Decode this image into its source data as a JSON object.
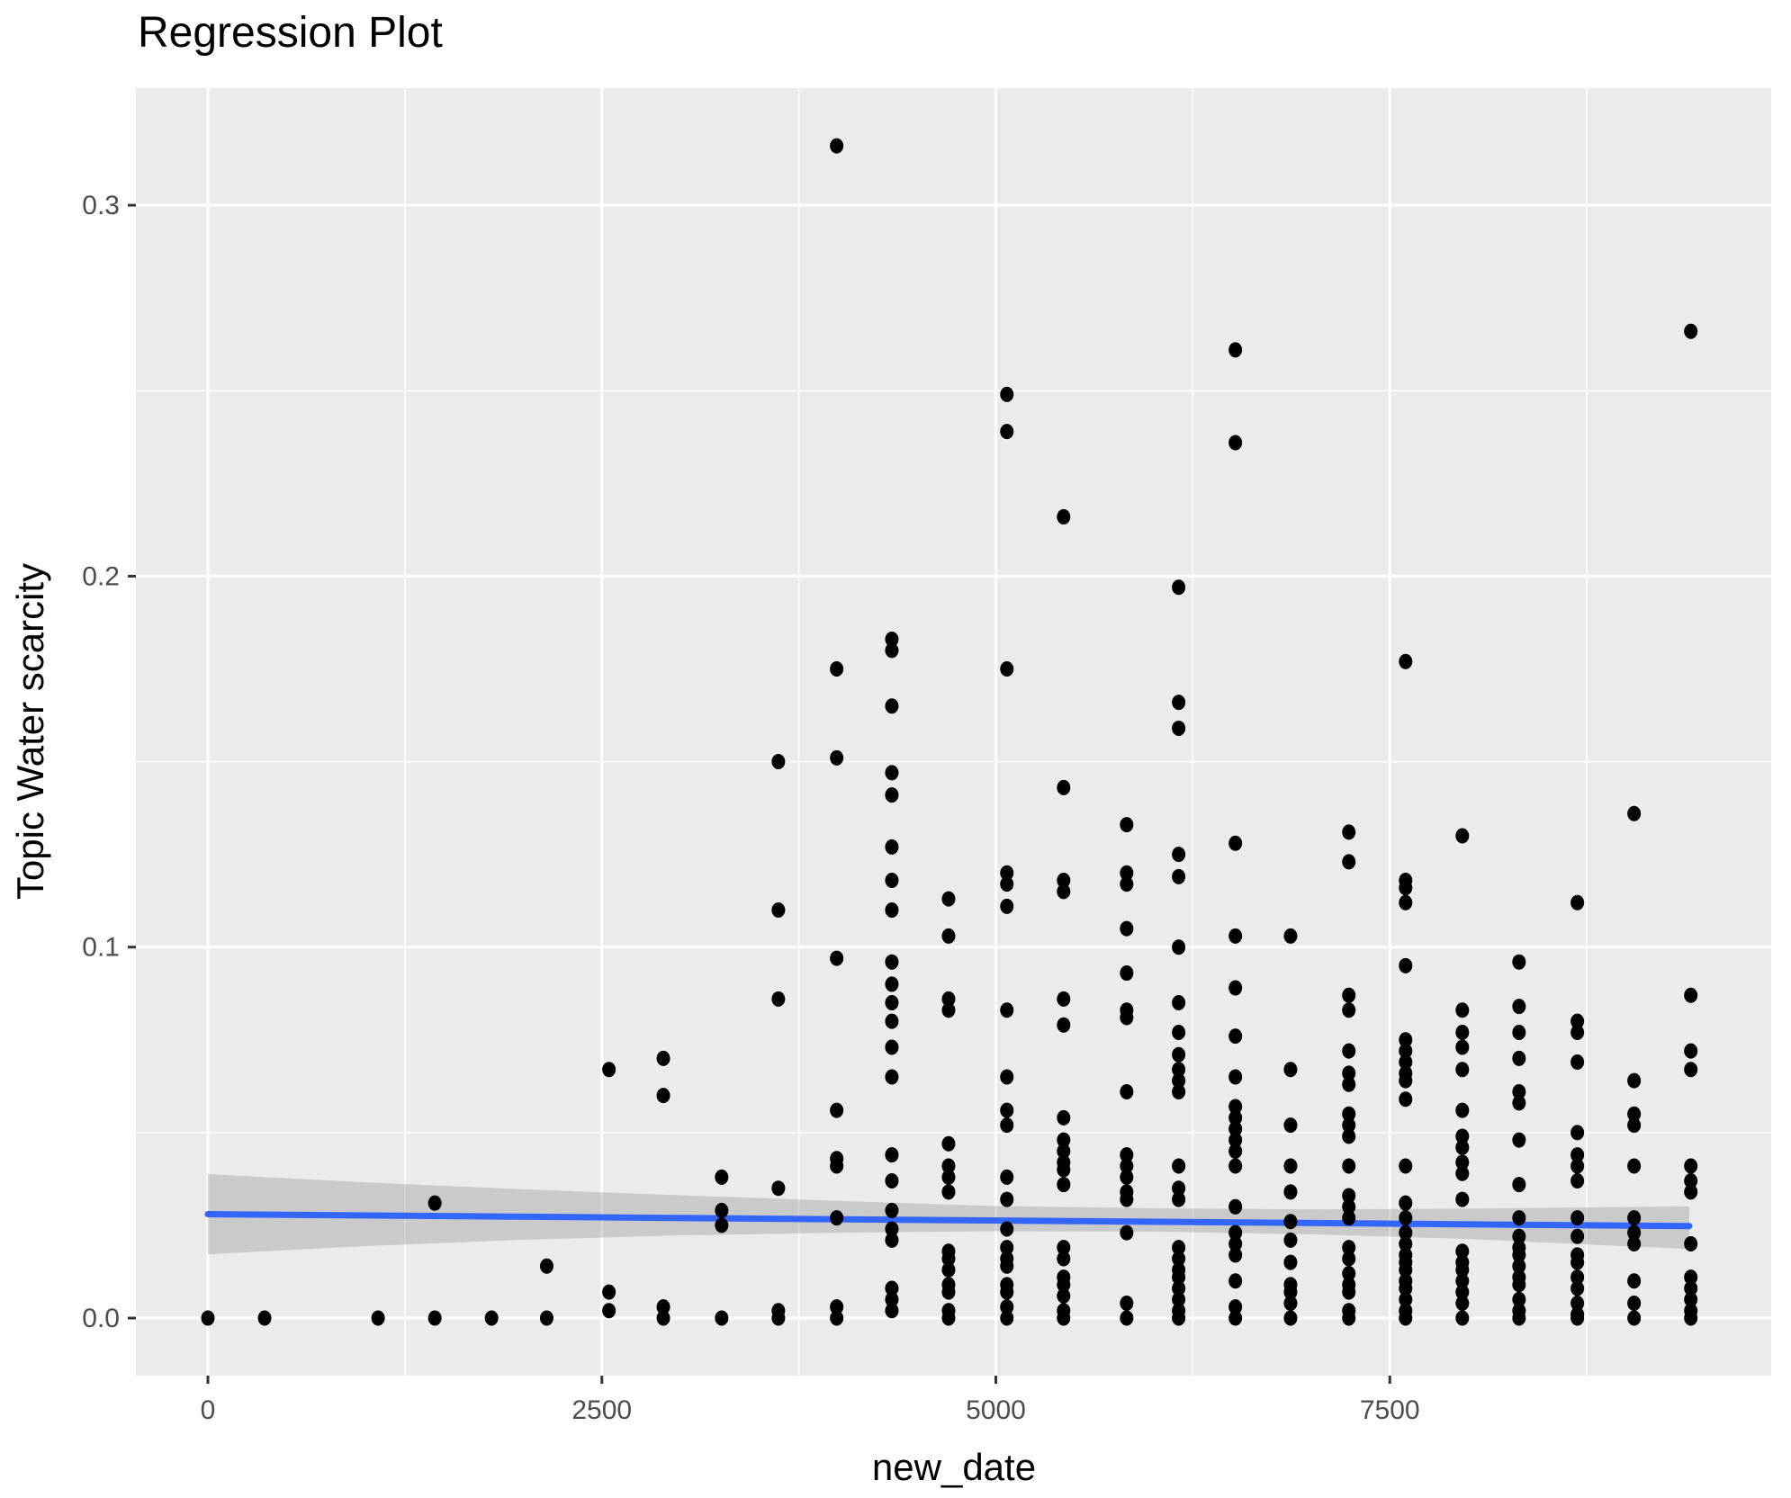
{
  "title": "Regression Plot",
  "x_axis": {
    "label": "new_date",
    "ticks": [
      {
        "v": 0,
        "label": "0"
      },
      {
        "v": 2500,
        "label": "2500"
      },
      {
        "v": 5000,
        "label": "5000"
      },
      {
        "v": 7500,
        "label": "7500"
      }
    ],
    "minor": [
      1250,
      3750,
      6250,
      8750
    ]
  },
  "y_axis": {
    "label": "Topic Water scarcity",
    "ticks": [
      {
        "v": 0.0,
        "label": "0.0"
      },
      {
        "v": 0.1,
        "label": "0.1"
      },
      {
        "v": 0.2,
        "label": "0.2"
      },
      {
        "v": 0.3,
        "label": "0.3"
      }
    ],
    "minor": [
      0.05,
      0.15,
      0.25
    ]
  },
  "colors": {
    "panel_bg": "#EBEBEB",
    "grid": "#FFFFFF",
    "point": "#000000",
    "line": "#3366FF",
    "band": "#999999",
    "band_opacity": 0.4,
    "tick_text": "#4D4D4D",
    "title_text": "#000000"
  },
  "chart_data": {
    "type": "scatter",
    "title": "Regression Plot",
    "xlabel": "new_date",
    "ylabel": "Topic Water scarcity",
    "xlim": [
      -460,
      9915
    ],
    "ylim": [
      -0.0155,
      0.3316
    ],
    "grid": true,
    "legend": "none",
    "points": [
      [
        0,
        0
      ],
      [
        360,
        0
      ],
      [
        1080,
        0
      ],
      [
        1440,
        0.031
      ],
      [
        1440,
        0
      ],
      [
        1800,
        0
      ],
      [
        2150,
        0.014
      ],
      [
        2150,
        0
      ],
      [
        2545,
        0.067
      ],
      [
        2545,
        0.007
      ],
      [
        2545,
        0.002
      ],
      [
        2890,
        0.07
      ],
      [
        2890,
        0.06
      ],
      [
        2890,
        0.003
      ],
      [
        2890,
        0
      ],
      [
        3260,
        0.038
      ],
      [
        3260,
        0.029
      ],
      [
        3260,
        0.025
      ],
      [
        3260,
        0
      ],
      [
        3620,
        0.15
      ],
      [
        3620,
        0.11
      ],
      [
        3620,
        0.086
      ],
      [
        3620,
        0.035
      ],
      [
        3620,
        0.002
      ],
      [
        3620,
        0
      ],
      [
        3990,
        0.316
      ],
      [
        3990,
        0.175
      ],
      [
        3990,
        0.151
      ],
      [
        3990,
        0.097
      ],
      [
        3990,
        0.056
      ],
      [
        3990,
        0.043
      ],
      [
        3990,
        0.041
      ],
      [
        3990,
        0.027
      ],
      [
        3990,
        0.003
      ],
      [
        3990,
        0
      ],
      [
        4340,
        0.183
      ],
      [
        4340,
        0.18
      ],
      [
        4340,
        0.165
      ],
      [
        4340,
        0.147
      ],
      [
        4340,
        0.141
      ],
      [
        4340,
        0.127
      ],
      [
        4340,
        0.118
      ],
      [
        4340,
        0.11
      ],
      [
        4340,
        0.096
      ],
      [
        4340,
        0.09
      ],
      [
        4340,
        0.085
      ],
      [
        4340,
        0.08
      ],
      [
        4340,
        0.073
      ],
      [
        4340,
        0.065
      ],
      [
        4340,
        0.044
      ],
      [
        4340,
        0.037
      ],
      [
        4340,
        0.029
      ],
      [
        4340,
        0.024
      ],
      [
        4340,
        0.021
      ],
      [
        4340,
        0.008
      ],
      [
        4340,
        0.005
      ],
      [
        4340,
        0.002
      ],
      [
        4700,
        0.113
      ],
      [
        4700,
        0.103
      ],
      [
        4700,
        0.086
      ],
      [
        4700,
        0.083
      ],
      [
        4700,
        0.047
      ],
      [
        4700,
        0.041
      ],
      [
        4700,
        0.038
      ],
      [
        4700,
        0.034
      ],
      [
        4700,
        0.018
      ],
      [
        4700,
        0.016
      ],
      [
        4700,
        0.013
      ],
      [
        4700,
        0.009
      ],
      [
        4700,
        0.007
      ],
      [
        4700,
        0.002
      ],
      [
        4700,
        0
      ],
      [
        5070,
        0.249
      ],
      [
        5070,
        0.239
      ],
      [
        5070,
        0.175
      ],
      [
        5070,
        0.12
      ],
      [
        5070,
        0.117
      ],
      [
        5070,
        0.111
      ],
      [
        5070,
        0.083
      ],
      [
        5070,
        0.065
      ],
      [
        5070,
        0.056
      ],
      [
        5070,
        0.052
      ],
      [
        5070,
        0.038
      ],
      [
        5070,
        0.032
      ],
      [
        5070,
        0.024
      ],
      [
        5070,
        0.019
      ],
      [
        5070,
        0.016
      ],
      [
        5070,
        0.014
      ],
      [
        5070,
        0.009
      ],
      [
        5070,
        0.007
      ],
      [
        5070,
        0.003
      ],
      [
        5070,
        0
      ],
      [
        5430,
        0.216
      ],
      [
        5430,
        0.143
      ],
      [
        5430,
        0.118
      ],
      [
        5430,
        0.115
      ],
      [
        5430,
        0.086
      ],
      [
        5430,
        0.079
      ],
      [
        5430,
        0.054
      ],
      [
        5430,
        0.048
      ],
      [
        5430,
        0.045
      ],
      [
        5430,
        0.042
      ],
      [
        5430,
        0.04
      ],
      [
        5430,
        0.036
      ],
      [
        5430,
        0.019
      ],
      [
        5430,
        0.016
      ],
      [
        5430,
        0.011
      ],
      [
        5430,
        0.009
      ],
      [
        5430,
        0.006
      ],
      [
        5430,
        0.002
      ],
      [
        5430,
        0
      ],
      [
        5830,
        0.133
      ],
      [
        5830,
        0.12
      ],
      [
        5830,
        0.117
      ],
      [
        5830,
        0.105
      ],
      [
        5830,
        0.093
      ],
      [
        5830,
        0.083
      ],
      [
        5830,
        0.081
      ],
      [
        5830,
        0.061
      ],
      [
        5830,
        0.044
      ],
      [
        5830,
        0.041
      ],
      [
        5830,
        0.038
      ],
      [
        5830,
        0.034
      ],
      [
        5830,
        0.032
      ],
      [
        5830,
        0.023
      ],
      [
        5830,
        0.004
      ],
      [
        5830,
        0
      ],
      [
        6160,
        0.197
      ],
      [
        6160,
        0.166
      ],
      [
        6160,
        0.159
      ],
      [
        6160,
        0.125
      ],
      [
        6160,
        0.119
      ],
      [
        6160,
        0.1
      ],
      [
        6160,
        0.085
      ],
      [
        6160,
        0.077
      ],
      [
        6160,
        0.071
      ],
      [
        6160,
        0.067
      ],
      [
        6160,
        0.064
      ],
      [
        6160,
        0.061
      ],
      [
        6160,
        0.041
      ],
      [
        6160,
        0.035
      ],
      [
        6160,
        0.032
      ],
      [
        6160,
        0.019
      ],
      [
        6160,
        0.016
      ],
      [
        6160,
        0.013
      ],
      [
        6160,
        0.011
      ],
      [
        6160,
        0.008
      ],
      [
        6160,
        0.005
      ],
      [
        6160,
        0.002
      ],
      [
        6160,
        0
      ],
      [
        6520,
        0.261
      ],
      [
        6520,
        0.236
      ],
      [
        6520,
        0.128
      ],
      [
        6520,
        0.103
      ],
      [
        6520,
        0.089
      ],
      [
        6520,
        0.076
      ],
      [
        6520,
        0.065
      ],
      [
        6520,
        0.057
      ],
      [
        6520,
        0.054
      ],
      [
        6520,
        0.051
      ],
      [
        6520,
        0.048
      ],
      [
        6520,
        0.045
      ],
      [
        6520,
        0.041
      ],
      [
        6520,
        0.03
      ],
      [
        6520,
        0.023
      ],
      [
        6520,
        0.02
      ],
      [
        6520,
        0.017
      ],
      [
        6520,
        0.01
      ],
      [
        6520,
        0.003
      ],
      [
        6520,
        0
      ],
      [
        6870,
        0.103
      ],
      [
        6870,
        0.067
      ],
      [
        6870,
        0.052
      ],
      [
        6870,
        0.041
      ],
      [
        6870,
        0.034
      ],
      [
        6870,
        0.026
      ],
      [
        6870,
        0.021
      ],
      [
        6870,
        0.015
      ],
      [
        6870,
        0.009
      ],
      [
        6870,
        0.007
      ],
      [
        6870,
        0.004
      ],
      [
        6870,
        0
      ],
      [
        7240,
        0.131
      ],
      [
        7240,
        0.123
      ],
      [
        7240,
        0.087
      ],
      [
        7240,
        0.083
      ],
      [
        7240,
        0.072
      ],
      [
        7240,
        0.066
      ],
      [
        7240,
        0.063
      ],
      [
        7240,
        0.055
      ],
      [
        7240,
        0.052
      ],
      [
        7240,
        0.049
      ],
      [
        7240,
        0.041
      ],
      [
        7240,
        0.033
      ],
      [
        7240,
        0.03
      ],
      [
        7240,
        0.027
      ],
      [
        7240,
        0.019
      ],
      [
        7240,
        0.016
      ],
      [
        7240,
        0.012
      ],
      [
        7240,
        0.009
      ],
      [
        7240,
        0.007
      ],
      [
        7240,
        0.002
      ],
      [
        7240,
        0
      ],
      [
        7600,
        0.177
      ],
      [
        7600,
        0.118
      ],
      [
        7600,
        0.116
      ],
      [
        7600,
        0.112
      ],
      [
        7600,
        0.095
      ],
      [
        7600,
        0.075
      ],
      [
        7600,
        0.072
      ],
      [
        7600,
        0.069
      ],
      [
        7600,
        0.066
      ],
      [
        7600,
        0.064
      ],
      [
        7600,
        0.059
      ],
      [
        7600,
        0.041
      ],
      [
        7600,
        0.031
      ],
      [
        7600,
        0.027
      ],
      [
        7600,
        0.023
      ],
      [
        7600,
        0.02
      ],
      [
        7600,
        0.017
      ],
      [
        7600,
        0.015
      ],
      [
        7600,
        0.013
      ],
      [
        7600,
        0.01
      ],
      [
        7600,
        0.008
      ],
      [
        7600,
        0.005
      ],
      [
        7600,
        0.002
      ],
      [
        7600,
        0
      ],
      [
        7960,
        0.13
      ],
      [
        7960,
        0.083
      ],
      [
        7960,
        0.077
      ],
      [
        7960,
        0.073
      ],
      [
        7960,
        0.067
      ],
      [
        7960,
        0.056
      ],
      [
        7960,
        0.049
      ],
      [
        7960,
        0.046
      ],
      [
        7960,
        0.042
      ],
      [
        7960,
        0.039
      ],
      [
        7960,
        0.032
      ],
      [
        7960,
        0.018
      ],
      [
        7960,
        0.015
      ],
      [
        7960,
        0.013
      ],
      [
        7960,
        0.01
      ],
      [
        7960,
        0.007
      ],
      [
        7960,
        0.004
      ],
      [
        7960,
        0
      ],
      [
        8320,
        0.096
      ],
      [
        8320,
        0.084
      ],
      [
        8320,
        0.077
      ],
      [
        8320,
        0.07
      ],
      [
        8320,
        0.061
      ],
      [
        8320,
        0.058
      ],
      [
        8320,
        0.048
      ],
      [
        8320,
        0.036
      ],
      [
        8320,
        0.027
      ],
      [
        8320,
        0.022
      ],
      [
        8320,
        0.019
      ],
      [
        8320,
        0.017
      ],
      [
        8320,
        0.014
      ],
      [
        8320,
        0.011
      ],
      [
        8320,
        0.009
      ],
      [
        8320,
        0.005
      ],
      [
        8320,
        0.002
      ],
      [
        8320,
        0
      ],
      [
        8690,
        0.112
      ],
      [
        8690,
        0.08
      ],
      [
        8690,
        0.077
      ],
      [
        8690,
        0.069
      ],
      [
        8690,
        0.05
      ],
      [
        8690,
        0.044
      ],
      [
        8690,
        0.041
      ],
      [
        8690,
        0.037
      ],
      [
        8690,
        0.027
      ],
      [
        8690,
        0.022
      ],
      [
        8690,
        0.017
      ],
      [
        8690,
        0.015
      ],
      [
        8690,
        0.011
      ],
      [
        8690,
        0.008
      ],
      [
        8690,
        0.004
      ],
      [
        8690,
        0.001
      ],
      [
        8690,
        0
      ],
      [
        9050,
        0.136
      ],
      [
        9050,
        0.064
      ],
      [
        9050,
        0.055
      ],
      [
        9050,
        0.052
      ],
      [
        9050,
        0.041
      ],
      [
        9050,
        0.027
      ],
      [
        9050,
        0.023
      ],
      [
        9050,
        0.02
      ],
      [
        9050,
        0.01
      ],
      [
        9050,
        0.004
      ],
      [
        9050,
        0
      ],
      [
        9410,
        0.266
      ],
      [
        9410,
        0.087
      ],
      [
        9410,
        0.072
      ],
      [
        9410,
        0.067
      ],
      [
        9410,
        0.041
      ],
      [
        9410,
        0.037
      ],
      [
        9410,
        0.034
      ],
      [
        9410,
        0.02
      ],
      [
        9410,
        0.011
      ],
      [
        9410,
        0.008
      ],
      [
        9410,
        0.005
      ],
      [
        9410,
        0.002
      ],
      [
        9410,
        0
      ]
    ],
    "regression_line": {
      "x": [
        0,
        9400
      ],
      "y": [
        0.028,
        0.0248
      ],
      "color": "#3366FF"
    },
    "confidence_band": {
      "x": [
        0,
        1000,
        2000,
        3000,
        4000,
        5000,
        6000,
        7000,
        8000,
        9400
      ],
      "upper": [
        0.0388,
        0.0366,
        0.0347,
        0.0331,
        0.0316,
        0.0302,
        0.0296,
        0.0293,
        0.0295,
        0.0301
      ],
      "lower": [
        0.0172,
        0.0194,
        0.0211,
        0.0223,
        0.023,
        0.0234,
        0.0233,
        0.0226,
        0.0213,
        0.0186
      ]
    }
  }
}
